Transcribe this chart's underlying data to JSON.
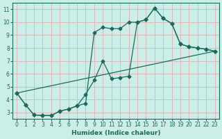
{
  "xlabel": "Humidex (Indice chaleur)",
  "bg_color": "#cceee8",
  "grid_color": "#ddb8b8",
  "line_color": "#1a6b5a",
  "xlim": [
    -0.5,
    23.5
  ],
  "ylim": [
    2.5,
    11.5
  ],
  "xticks": [
    0,
    1,
    2,
    3,
    4,
    5,
    6,
    7,
    8,
    9,
    10,
    11,
    12,
    13,
    14,
    15,
    16,
    17,
    18,
    19,
    20,
    21,
    22,
    23
  ],
  "yticks": [
    3,
    4,
    5,
    6,
    7,
    8,
    9,
    10,
    11
  ],
  "line1_x": [
    0,
    1,
    2,
    3,
    4,
    5,
    6,
    7,
    8,
    9,
    10,
    11,
    12,
    13,
    14,
    15,
    16,
    17,
    18,
    19,
    20,
    21,
    22,
    23
  ],
  "line1_y": [
    4.5,
    3.6,
    2.8,
    2.75,
    2.75,
    3.1,
    3.25,
    3.5,
    3.7,
    9.2,
    9.6,
    9.5,
    9.5,
    10.0,
    10.0,
    10.2,
    11.1,
    10.3,
    9.9,
    8.3,
    8.1,
    8.0,
    7.9,
    7.75
  ],
  "line2_x": [
    0,
    1,
    2,
    3,
    4,
    5,
    6,
    7,
    8,
    9,
    10,
    11,
    12,
    13,
    14,
    15,
    16,
    17,
    18,
    19,
    20,
    21,
    22,
    23
  ],
  "line2_y": [
    4.5,
    3.6,
    2.8,
    2.75,
    2.75,
    3.1,
    3.25,
    3.5,
    4.4,
    5.5,
    7.0,
    5.6,
    5.7,
    5.8,
    10.0,
    10.2,
    11.1,
    10.3,
    9.9,
    8.3,
    8.1,
    8.0,
    7.9,
    7.75
  ],
  "line3_x": [
    0,
    23
  ],
  "line3_y": [
    4.5,
    7.75
  ]
}
